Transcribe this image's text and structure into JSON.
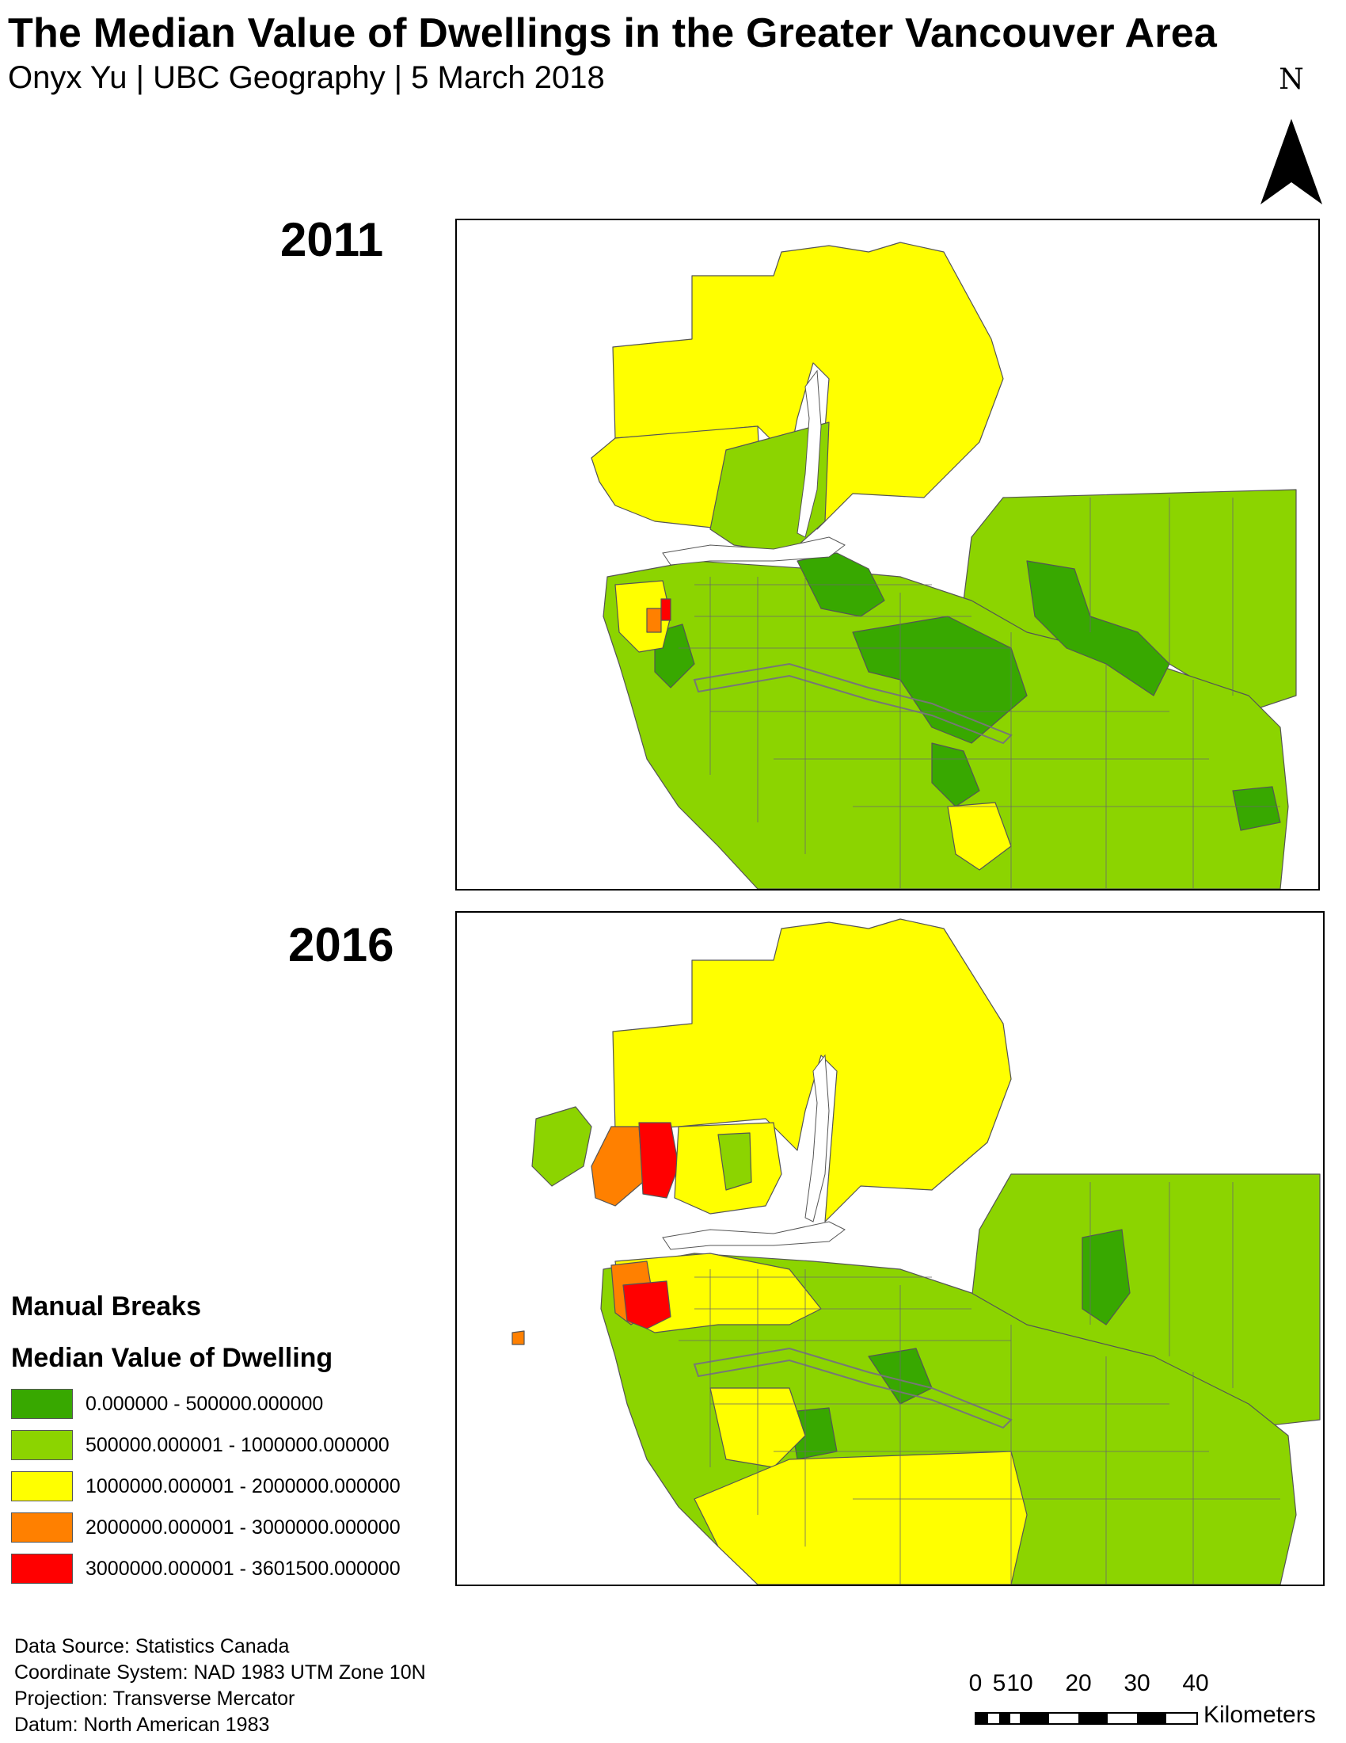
{
  "header": {
    "title": "The Median Value of Dwellings in the Greater Vancouver Area",
    "subtitle": "Onyx Yu | UBC Geography | 5 March 2018"
  },
  "north_arrow": {
    "letter": "N"
  },
  "maps": [
    {
      "year": "2011"
    },
    {
      "year": "2016"
    }
  ],
  "legend": {
    "title": "Manual Breaks",
    "subtitle": "Median Value of Dwelling",
    "items": [
      {
        "label": "0.000000 - 500000.000000",
        "color": "#38A800"
      },
      {
        "label": "500000.000001 - 1000000.000000",
        "color": "#8CD400"
      },
      {
        "label": "1000000.000001 - 2000000.000000",
        "color": "#FFFF00"
      },
      {
        "label": "2000000.000001 - 3000000.000000",
        "color": "#FF8000"
      },
      {
        "label": "3000000.000001 - 3601500.000000",
        "color": "#FF0000"
      }
    ]
  },
  "footer": {
    "source": "Data Source: Statistics Canada",
    "coordinate_system": "Coordinate System: NAD 1983 UTM Zone 10N",
    "projection": "Projection: Transverse Mercator",
    "datum": "Datum: North American 1983"
  },
  "scale_bar": {
    "ticks": [
      "0",
      "5",
      "10",
      "20",
      "30",
      "40"
    ],
    "units": "Kilometers"
  }
}
